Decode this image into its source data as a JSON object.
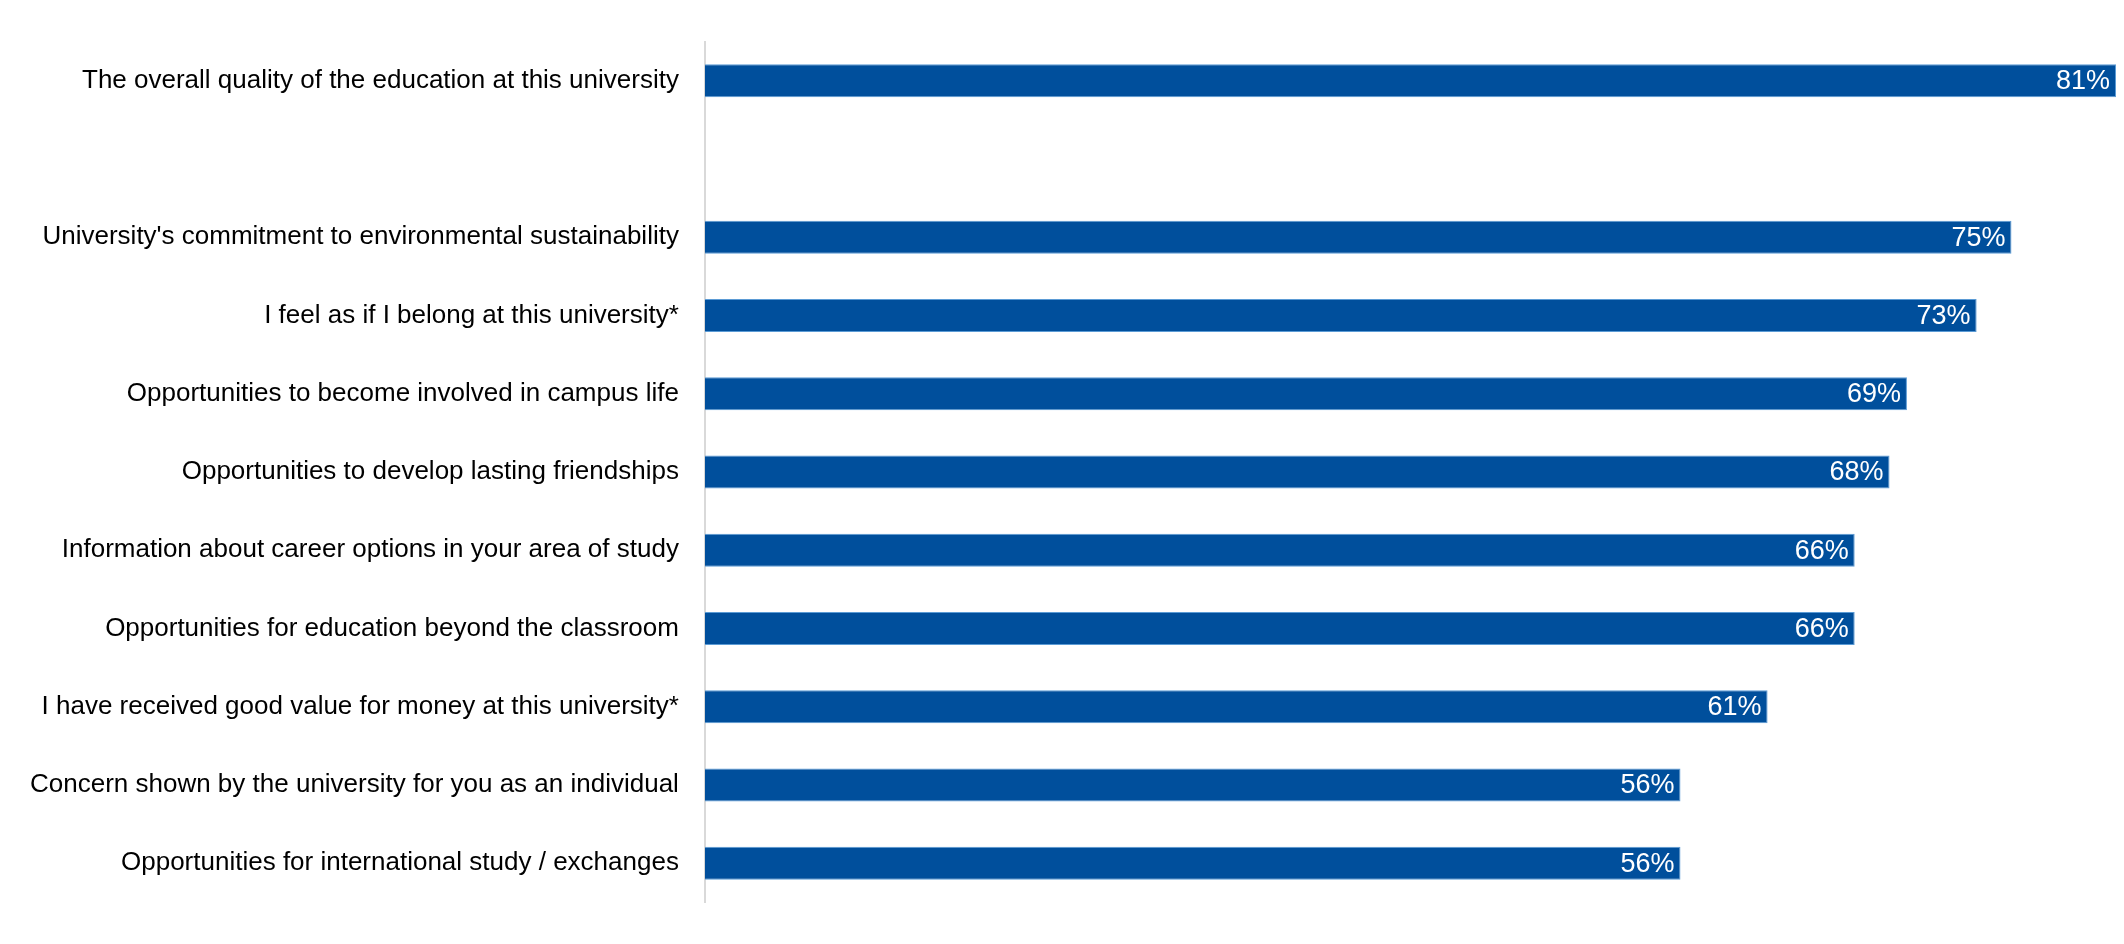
{
  "chart_data": {
    "type": "bar",
    "orientation": "horizontal",
    "categories": [
      "The overall quality of the education at this university",
      null,
      "University's commitment to environmental sustainability",
      "I feel as if I belong at this university*",
      "Opportunities to become involved in campus life",
      "Opportunities to develop lasting friendships",
      "Information about career options in your area of study",
      "Opportunities for education beyond the classroom",
      "I have received good value for money at this university*",
      "Concern shown by the university for you as an individual",
      "Opportunities for international study / exchanges"
    ],
    "values": [
      81,
      null,
      75,
      73,
      69,
      68,
      66,
      66,
      61,
      56,
      56
    ],
    "value_labels": [
      "81%",
      null,
      "75%",
      "73%",
      "69%",
      "68%",
      "66%",
      "66%",
      "61%",
      "56%",
      "56%"
    ],
    "color": "#004f9c",
    "xlim": [
      0,
      81
    ],
    "tick_labels": "y",
    "grid": false,
    "legend": false
  }
}
